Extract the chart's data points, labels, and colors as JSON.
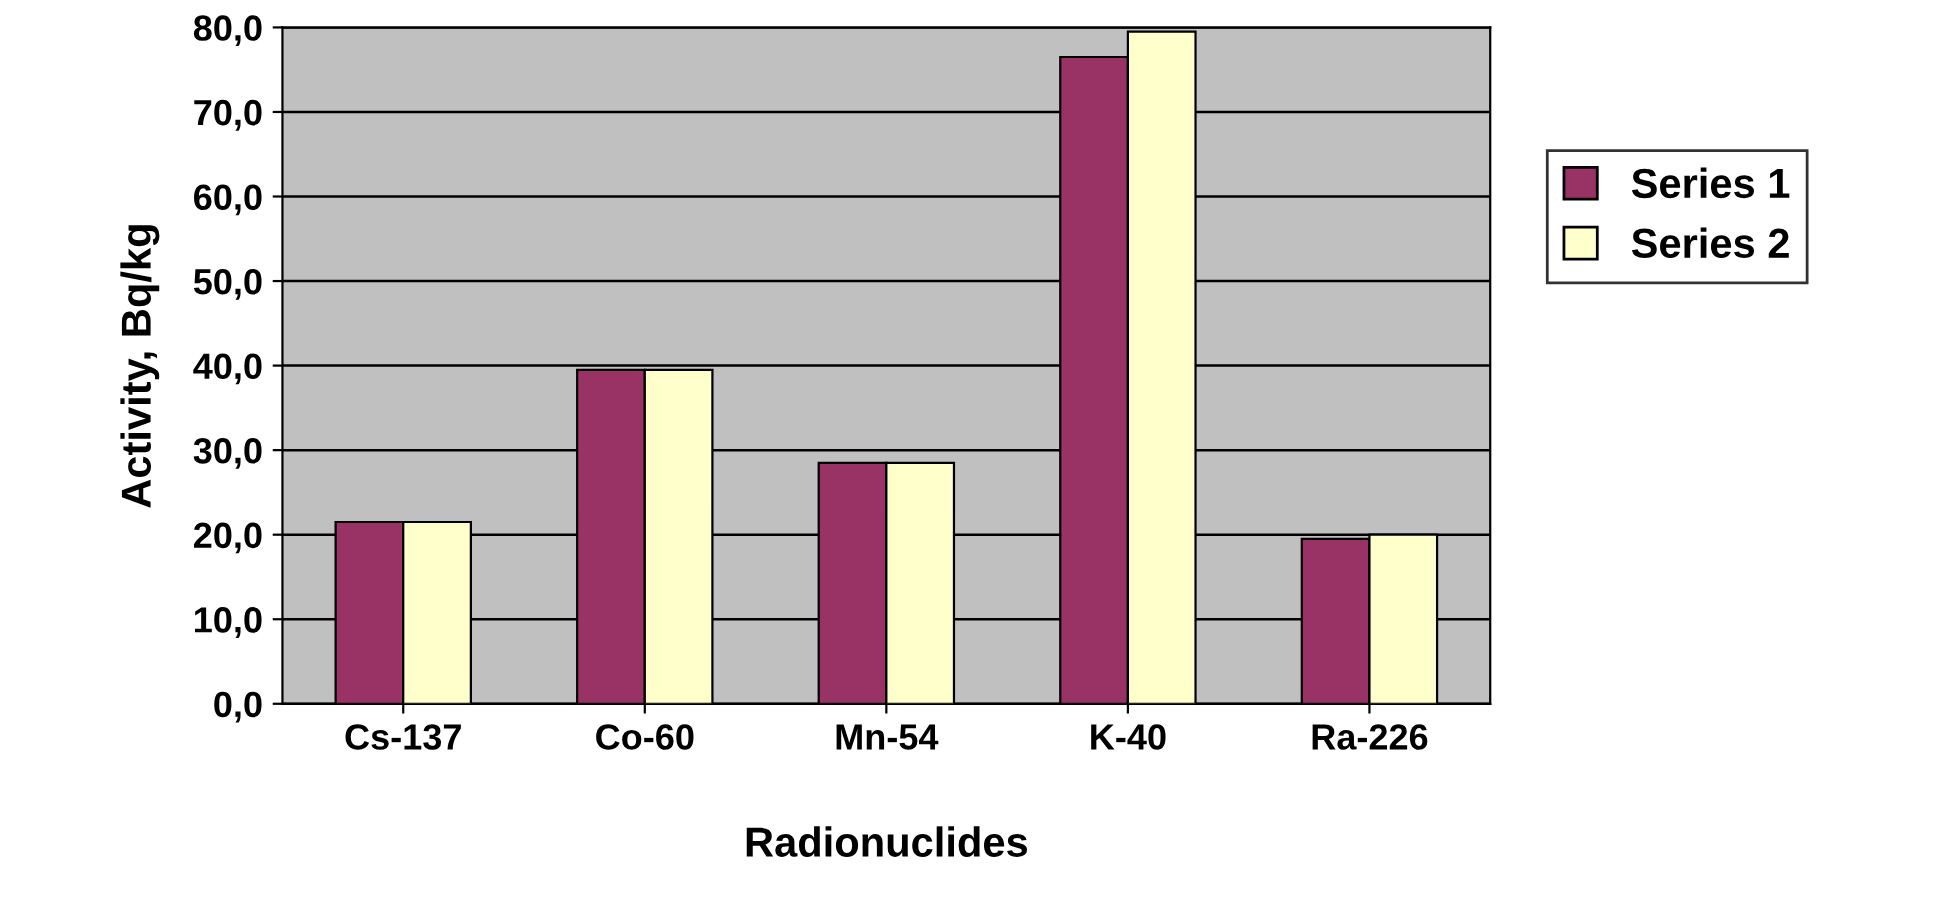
{
  "chart_data": {
    "type": "bar",
    "xlabel": "Radionuclides",
    "ylabel": "Activity, Bq/kg",
    "categories": [
      "Cs-137",
      "Co-60",
      "Mn-54",
      "K-40",
      "Ra-226"
    ],
    "series": [
      {
        "name": "Series 1",
        "color": "#993366",
        "values": [
          21.5,
          39.5,
          28.5,
          76.5,
          19.5
        ]
      },
      {
        "name": "Series 2",
        "color": "#ffffcc",
        "values": [
          21.5,
          39.5,
          28.5,
          79.5,
          20.0
        ]
      }
    ],
    "ylim": [
      0,
      80
    ],
    "yticks": [
      {
        "value": 0,
        "label": "0,0"
      },
      {
        "value": 10,
        "label": "10,0"
      },
      {
        "value": 20,
        "label": "20,0"
      },
      {
        "value": 30,
        "label": "30,0"
      },
      {
        "value": 40,
        "label": "40,0"
      },
      {
        "value": 50,
        "label": "50,0"
      },
      {
        "value": 60,
        "label": "60,0"
      },
      {
        "value": 70,
        "label": "70,0"
      },
      {
        "value": 80,
        "label": "80,0"
      }
    ],
    "grid": "y",
    "legend": "right"
  }
}
